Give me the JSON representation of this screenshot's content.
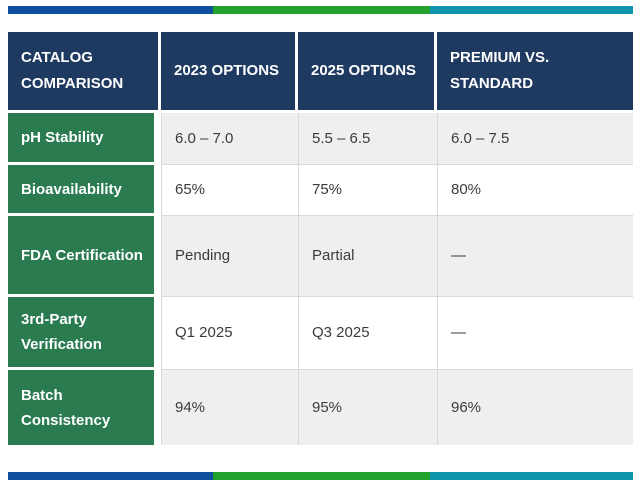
{
  "accent_bars": {
    "description": "tri-color horizontal rule above and below table",
    "segments": [
      {
        "name": "navy",
        "color": "#0f509e"
      },
      {
        "name": "green",
        "color": "#22a12c"
      },
      {
        "name": "teal",
        "color": "#0e96ac"
      }
    ]
  },
  "colors": {
    "header_background": "#1f3a61",
    "row_label_background": "#2b7b51",
    "alt_row_background": "#efefef",
    "grid_line": "#d9d9d9",
    "header_text": "#ffffff",
    "value_text": "#3b3b3b"
  },
  "table": {
    "columns": [
      "CATALOG COMPARISON",
      "2023 OPTIONS",
      "2025 OPTIONS",
      "PREMIUM VS. STANDARD"
    ],
    "rows": [
      {
        "label": "pH Stability",
        "values": [
          "6.0 – 7.0",
          "5.5 – 6.5",
          "6.0 – 7.5"
        ]
      },
      {
        "label": "Bioavailability",
        "values": [
          "65%",
          "75%",
          "80%"
        ]
      },
      {
        "label": "FDA Certification",
        "values": [
          "Pending",
          "Partial",
          "—"
        ]
      },
      {
        "label": "3rd-Party Verification",
        "values": [
          "Q1 2025",
          "Q3 2025",
          "—"
        ]
      },
      {
        "label": "Batch Consistency",
        "values": [
          "94%",
          "95%",
          "96%"
        ]
      }
    ]
  },
  "chart_data": {
    "type": "table",
    "title": "Catalog Comparison",
    "categories": [
      "pH Stability",
      "Bioavailability",
      "FDA Certification",
      "3rd-Party Verification",
      "Batch Consistency"
    ],
    "series": [
      {
        "name": "2023 Options",
        "values": [
          "6.0 – 7.0",
          "65%",
          "Pending",
          "Q1 2025",
          "94%"
        ]
      },
      {
        "name": "2025 Options",
        "values": [
          "5.5 – 6.5",
          "75%",
          "Partial",
          "Q3 2025",
          "95%"
        ]
      },
      {
        "name": "Premium vs. Standard",
        "values": [
          "6.0 – 7.5",
          "80%",
          "—",
          "—",
          "96%"
        ]
      }
    ]
  }
}
